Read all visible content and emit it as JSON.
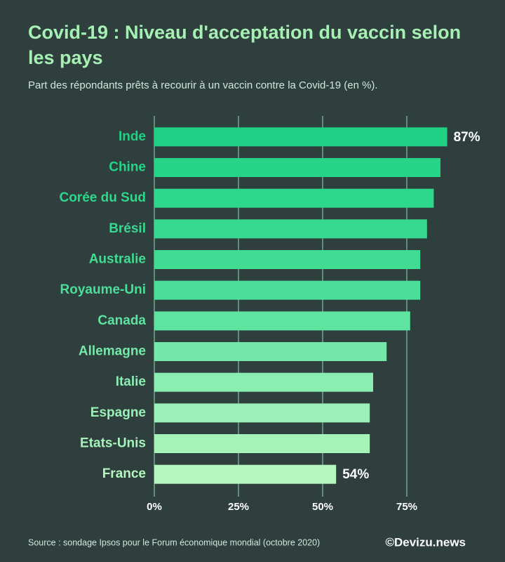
{
  "chart_data": {
    "type": "bar",
    "orientation": "horizontal",
    "title": "Covid-19 : Niveau d'acceptation du vaccin selon les pays",
    "subtitle": "Part des répondants prêts à recourir à un vaccin contre la Covid-19 (en %).",
    "categories": [
      "Inde",
      "Chine",
      "Corée du Sud",
      "Brésil",
      "Australie",
      "Royaume-Uni",
      "Canada",
      "Allemagne",
      "Italie",
      "Espagne",
      "Etats-Unis",
      "France"
    ],
    "values": [
      87,
      85,
      83,
      81,
      79,
      79,
      76,
      69,
      65,
      64,
      64,
      54
    ],
    "value_labels": [
      "87%",
      null,
      null,
      null,
      null,
      null,
      null,
      null,
      null,
      null,
      null,
      "54%"
    ],
    "colors": [
      "#1fd184",
      "#26d488",
      "#2dd78b",
      "#36d98f",
      "#40dc93",
      "#4ade98",
      "#5ee3a0",
      "#75e8a9",
      "#8aedb2",
      "#9af0b6",
      "#a6f3ba",
      "#b5f7bf"
    ],
    "xlim": [
      0,
      100
    ],
    "xticks": [
      {
        "value": 0,
        "label": "0%"
      },
      {
        "value": 25,
        "label": "25%"
      },
      {
        "value": 50,
        "label": "50%"
      },
      {
        "value": 75,
        "label": "75%"
      }
    ],
    "grid": true,
    "source": "Source : sondage Ipsos pour le Forum économique mondial (octobre 2020)",
    "credit": "©Devizu.news"
  }
}
